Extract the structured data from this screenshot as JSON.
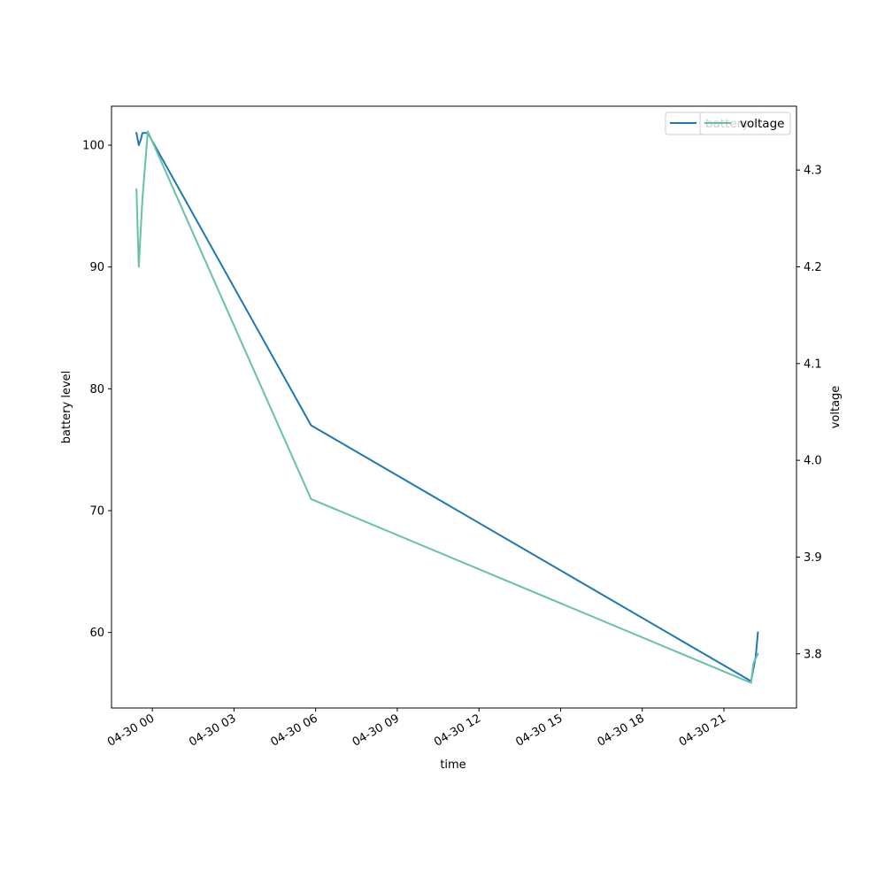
{
  "chart_data": {
    "type": "line",
    "xlabel": "time",
    "ylabel_left": "battery level",
    "ylabel_right": "voltage",
    "x_ticks": [
      "04-30 00",
      "04-30 03",
      "04-30 06",
      "04-30 09",
      "04-30 12",
      "04-30 15",
      "04-30 18",
      "04-30 21"
    ],
    "y_left_ticks": [
      "60",
      "70",
      "80",
      "90",
      "100"
    ],
    "y_right_ticks": [
      "3.8",
      "3.9",
      "4.0",
      "4.1",
      "4.2",
      "4.3"
    ],
    "y_left_lim": [
      53.8,
      103.2
    ],
    "y_right_lim": [
      3.744,
      4.366
    ],
    "x_range": [
      "2020-04-29 22:30",
      "2020-04-30 23:40"
    ],
    "legend_position": "top-right",
    "series": [
      {
        "name": "battery",
        "axis": "left",
        "color": "#1f77b4",
        "points": [
          [
            "2020-04-29 23:25",
            101
          ],
          [
            "2020-04-29 23:30",
            100
          ],
          [
            "2020-04-29 23:35",
            100.5
          ],
          [
            "2020-04-29 23:38",
            101
          ],
          [
            "2020-04-29 23:50",
            101
          ],
          [
            "2020-04-30 05:50",
            77
          ],
          [
            "2020-04-30 22:00",
            56
          ],
          [
            "2020-04-30 22:05",
            57
          ],
          [
            "2020-04-30 22:10",
            58
          ],
          [
            "2020-04-30 22:15",
            60
          ]
        ]
      },
      {
        "name": "voltage",
        "axis": "right",
        "color": "#66c2a5",
        "points": [
          [
            "2020-04-29 23:25",
            4.28
          ],
          [
            "2020-04-29 23:30",
            4.2
          ],
          [
            "2020-04-29 23:38",
            4.27
          ],
          [
            "2020-04-29 23:50",
            4.34
          ],
          [
            "2020-04-30 05:50",
            3.96
          ],
          [
            "2020-04-30 22:00",
            3.77
          ],
          [
            "2020-04-30 22:05",
            3.79
          ],
          [
            "2020-04-30 22:15",
            3.8
          ]
        ]
      }
    ]
  },
  "legend": {
    "battery_label": "battery",
    "voltage_label": "voltage"
  }
}
